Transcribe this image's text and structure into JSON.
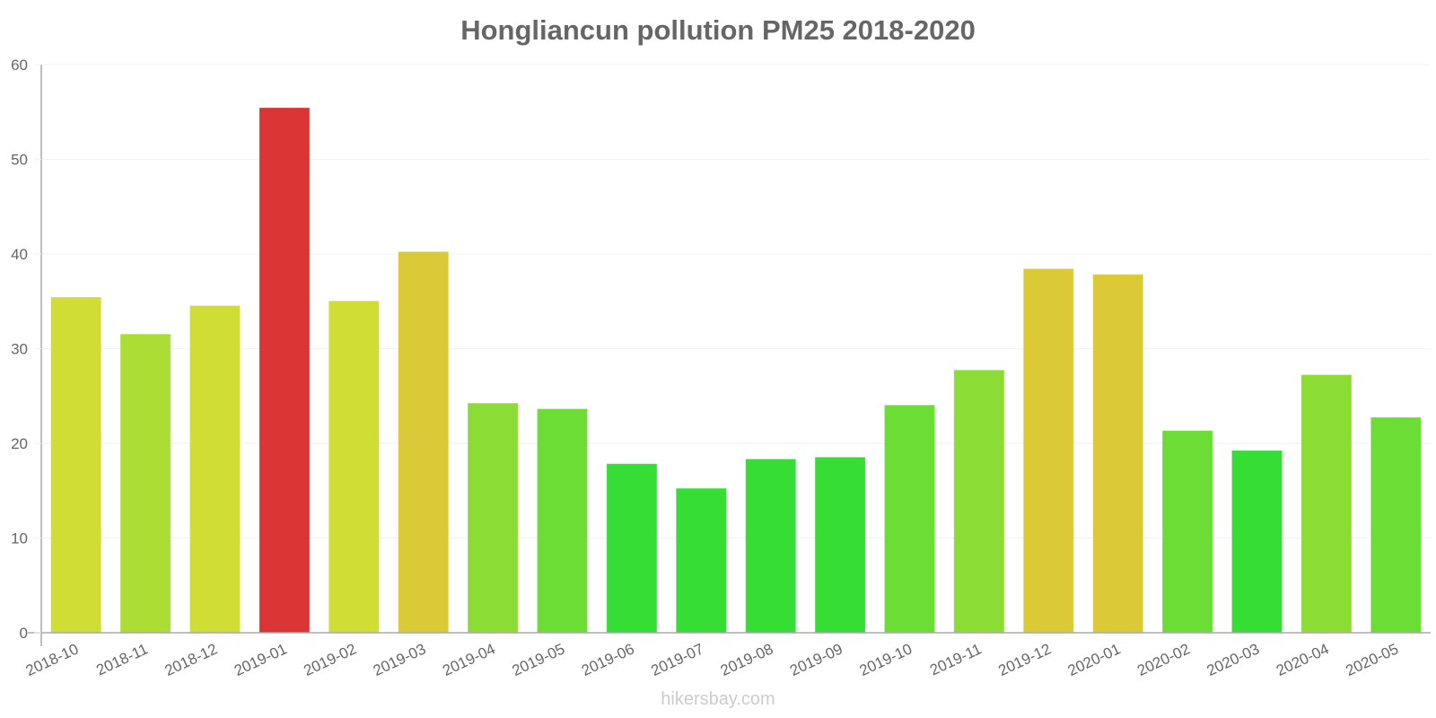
{
  "title": "Hongliancun pollution PM25 2018-2020",
  "watermark": "hikersbay.com",
  "colors": {
    "axis": "#aaaaaa",
    "grid": "#f2f2f2",
    "tick_text": "#666666"
  },
  "chart_data": {
    "type": "bar",
    "title": "Hongliancun pollution PM25 2018-2020",
    "xlabel": "",
    "ylabel": "",
    "ylim": [
      0,
      60
    ],
    "yticks": [
      0,
      10,
      20,
      30,
      40,
      50,
      60
    ],
    "grid": true,
    "legend": null,
    "categories": [
      "2018-10",
      "2018-11",
      "2018-12",
      "2019-01",
      "2019-02",
      "2019-03",
      "2019-04",
      "2019-05",
      "2019-06",
      "2019-07",
      "2019-08",
      "2019-09",
      "2019-10",
      "2019-11",
      "2019-12",
      "2020-01",
      "2020-02",
      "2020-03",
      "2020-04",
      "2020-05"
    ],
    "values": [
      35.4,
      31.5,
      34.5,
      55.4,
      35.0,
      40.2,
      24.2,
      23.6,
      17.8,
      15.2,
      18.3,
      18.5,
      24.0,
      27.7,
      38.4,
      37.8,
      21.3,
      19.2,
      27.2,
      22.7
    ],
    "bar_colors": [
      "#cfdd35",
      "#acdd35",
      "#cfdd35",
      "#db3535",
      "#cfdd35",
      "#dbc935",
      "#8bdd35",
      "#6bdd35",
      "#35dd35",
      "#35dd35",
      "#35dd35",
      "#35dd35",
      "#6bdd35",
      "#8bdd35",
      "#dbc935",
      "#dbc935",
      "#6bdd35",
      "#35dd35",
      "#8bdd35",
      "#6bdd35"
    ]
  }
}
